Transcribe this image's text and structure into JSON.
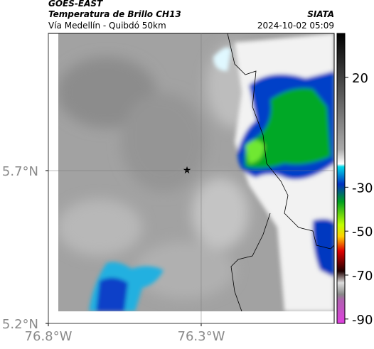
{
  "header": {
    "title": "GOES-EAST",
    "subtitle": "Temperatura de Brillo CH13",
    "location": "Vía Medellín - Quibdó 50km",
    "source": "SIATA",
    "timestamp": "2024-10-02 05:09"
  },
  "map": {
    "xlim": [
      -76.8,
      -75.865
    ],
    "ylim": [
      5.2,
      6.149
    ],
    "xticks": [
      {
        "value": -76.8,
        "label": "76.8°W"
      },
      {
        "value": -76.3,
        "label": "76.3°W"
      }
    ],
    "yticks": [
      {
        "value": 5.2,
        "label": "5.2°N"
      },
      {
        "value": 5.7,
        "label": "5.7°N"
      }
    ],
    "grid": true
  },
  "colorbar": {
    "lim": [
      -92,
      40
    ],
    "ticks": [
      20,
      -30,
      -50,
      -70,
      -90
    ]
  }
}
